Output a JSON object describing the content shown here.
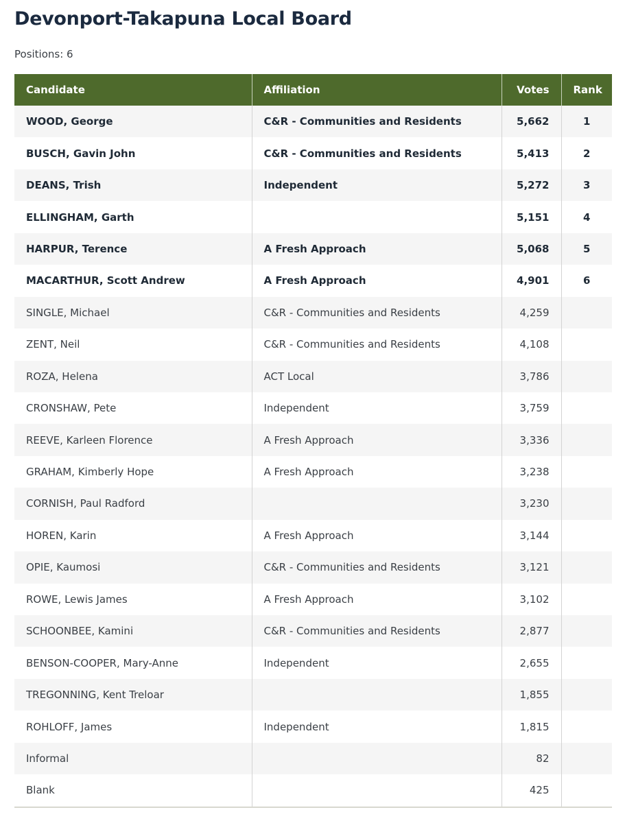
{
  "title": "Devonport-Takapuna Local Board",
  "positions": "Positions: 6",
  "table": {
    "headers": {
      "candidate": "Candidate",
      "affiliation": "Affiliation",
      "votes": "Votes",
      "rank": "Rank"
    },
    "header_color": "#4e6a2c",
    "rows": [
      {
        "candidate": "WOOD, George",
        "affiliation": "C&R - Communities and Residents",
        "votes": "5,662",
        "rank": "1",
        "elected": true
      },
      {
        "candidate": "BUSCH, Gavin John",
        "affiliation": "C&R - Communities and Residents",
        "votes": "5,413",
        "rank": "2",
        "elected": true
      },
      {
        "candidate": "DEANS, Trish",
        "affiliation": "Independent",
        "votes": "5,272",
        "rank": "3",
        "elected": true
      },
      {
        "candidate": "ELLINGHAM, Garth",
        "affiliation": "",
        "votes": "5,151",
        "rank": "4",
        "elected": true
      },
      {
        "candidate": "HARPUR, Terence",
        "affiliation": "A Fresh Approach",
        "votes": "5,068",
        "rank": "5",
        "elected": true
      },
      {
        "candidate": "MACARTHUR, Scott Andrew",
        "affiliation": "A Fresh Approach",
        "votes": "4,901",
        "rank": "6",
        "elected": true
      },
      {
        "candidate": "SINGLE, Michael",
        "affiliation": "C&R - Communities and Residents",
        "votes": "4,259",
        "rank": ""
      },
      {
        "candidate": "ZENT, Neil",
        "affiliation": "C&R - Communities and Residents",
        "votes": "4,108",
        "rank": ""
      },
      {
        "candidate": "ROZA, Helena",
        "affiliation": "ACT Local",
        "votes": "3,786",
        "rank": ""
      },
      {
        "candidate": "CRONSHAW, Pete",
        "affiliation": "Independent",
        "votes": "3,759",
        "rank": ""
      },
      {
        "candidate": "REEVE, Karleen Florence",
        "affiliation": "A Fresh Approach",
        "votes": "3,336",
        "rank": ""
      },
      {
        "candidate": "GRAHAM, Kimberly Hope",
        "affiliation": "A Fresh Approach",
        "votes": "3,238",
        "rank": ""
      },
      {
        "candidate": "CORNISH, Paul Radford",
        "affiliation": "",
        "votes": "3,230",
        "rank": ""
      },
      {
        "candidate": "HOREN, Karin",
        "affiliation": "A Fresh Approach",
        "votes": "3,144",
        "rank": ""
      },
      {
        "candidate": "OPIE, Kaumosi",
        "affiliation": "C&R - Communities and Residents",
        "votes": "3,121",
        "rank": ""
      },
      {
        "candidate": "ROWE, Lewis James",
        "affiliation": "A Fresh Approach",
        "votes": "3,102",
        "rank": ""
      },
      {
        "candidate": "SCHOONBEE, Kamini",
        "affiliation": "C&R - Communities and Residents",
        "votes": "2,877",
        "rank": ""
      },
      {
        "candidate": "BENSON-COOPER, Mary-Anne",
        "affiliation": "Independent",
        "votes": "2,655",
        "rank": ""
      },
      {
        "candidate": "TREGONNING, Kent Treloar",
        "affiliation": "",
        "votes": "1,855",
        "rank": ""
      },
      {
        "candidate": "ROHLOFF, James",
        "affiliation": "Independent",
        "votes": "1,815",
        "rank": ""
      },
      {
        "candidate": "Informal",
        "affiliation": "",
        "votes": "82",
        "rank": ""
      },
      {
        "candidate": "Blank",
        "affiliation": "",
        "votes": "425",
        "rank": ""
      }
    ]
  }
}
